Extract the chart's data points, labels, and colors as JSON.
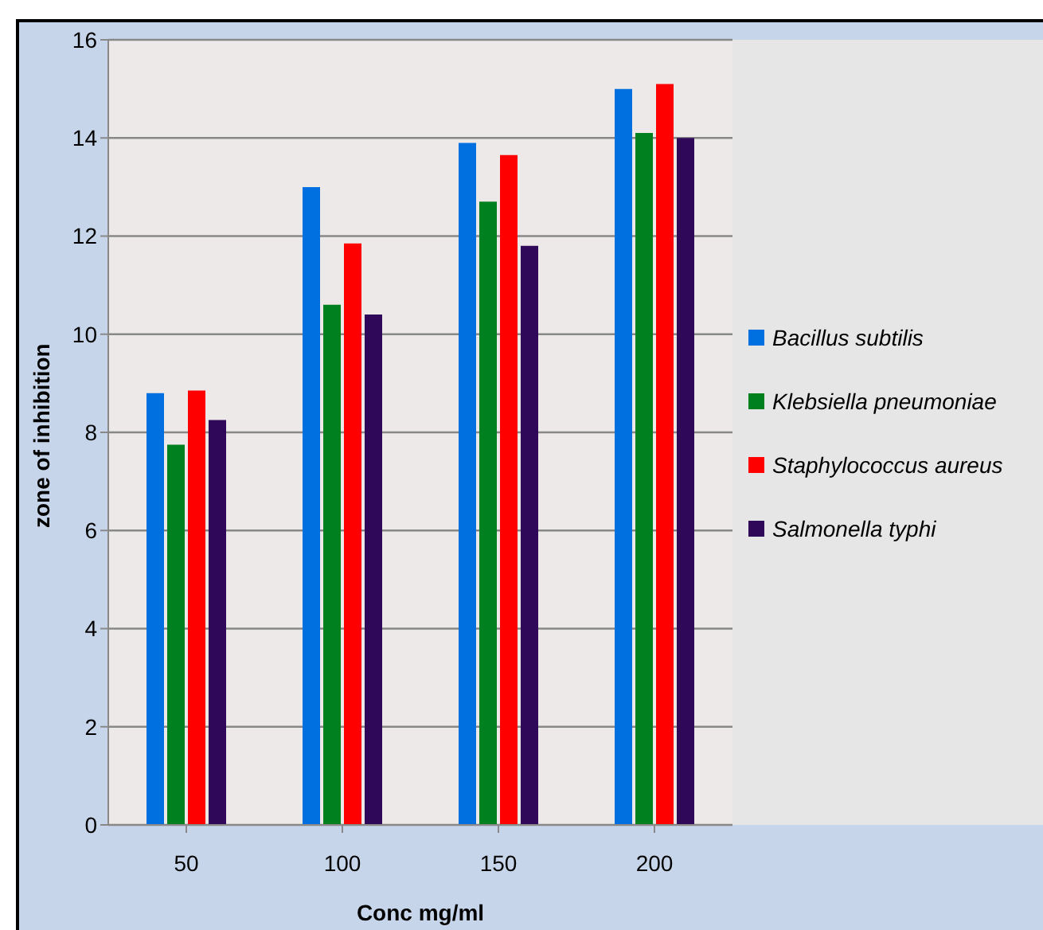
{
  "chart_data": {
    "type": "bar",
    "xlabel": "Conc mg/ml",
    "ylabel": "zone of inhibition",
    "categories": [
      "50",
      "100",
      "150",
      "200"
    ],
    "series": [
      {
        "name": "Bacillus subtilis",
        "color": "#0070e0",
        "values": [
          8.8,
          13.0,
          13.9,
          15.0
        ]
      },
      {
        "name": "Klebsiella pneumoniae",
        "color": "#00801e",
        "values": [
          7.75,
          10.6,
          12.7,
          14.1
        ]
      },
      {
        "name": "Staphylococcus aureus",
        "color": "#ff0000",
        "values": [
          8.85,
          11.85,
          13.65,
          15.1
        ]
      },
      {
        "name": "Salmonella typhi",
        "color": "#30085a",
        "values": [
          8.25,
          10.4,
          11.8,
          14.0
        ]
      }
    ],
    "ylim": [
      0,
      16
    ],
    "yticks": [
      0,
      2,
      4,
      6,
      8,
      10,
      12,
      14,
      16
    ],
    "grid": "y",
    "legend": "right"
  }
}
